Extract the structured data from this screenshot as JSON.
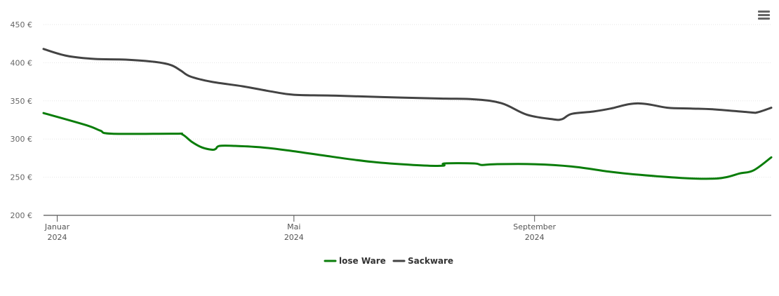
{
  "menu": {
    "icon": "hamburger-menu-icon"
  },
  "chart_data": {
    "type": "line",
    "title": "",
    "xlabel": "",
    "ylabel": "",
    "x_range": [
      "2023-12-25",
      "2024-12-31"
    ],
    "ylim": [
      200,
      450
    ],
    "y_ticks": [
      200,
      250,
      300,
      350,
      400,
      450
    ],
    "y_tick_suffix": " €",
    "grid": true,
    "legend_position": "bottom-center",
    "x_ticks": [
      {
        "date": "2024-01-01",
        "label": "Januar",
        "year": "2024"
      },
      {
        "date": "2024-05-01",
        "label": "Mai",
        "year": "2024"
      },
      {
        "date": "2024-09-01",
        "label": "September",
        "year": "2024"
      }
    ],
    "series": [
      {
        "name": "lose Ware",
        "color": "#0a7d0a",
        "points": [
          [
            "2023-12-25",
            334
          ],
          [
            "2024-01-16",
            318
          ],
          [
            "2024-01-23",
            311
          ],
          [
            "2024-01-29",
            307
          ],
          [
            "2024-03-01",
            307
          ],
          [
            "2024-03-05",
            306
          ],
          [
            "2024-03-10",
            296
          ],
          [
            "2024-03-15",
            289
          ],
          [
            "2024-03-20",
            286
          ],
          [
            "2024-03-22",
            287
          ],
          [
            "2024-03-24",
            291
          ],
          [
            "2024-04-01",
            291
          ],
          [
            "2024-04-15",
            289
          ],
          [
            "2024-05-01",
            284
          ],
          [
            "2024-05-20",
            277
          ],
          [
            "2024-06-10",
            270
          ],
          [
            "2024-07-01",
            266
          ],
          [
            "2024-07-16",
            265
          ],
          [
            "2024-07-17",
            268
          ],
          [
            "2024-08-01",
            268
          ],
          [
            "2024-08-05",
            266
          ],
          [
            "2024-08-12",
            267
          ],
          [
            "2024-09-01",
            267
          ],
          [
            "2024-09-20",
            264
          ],
          [
            "2024-10-10",
            257
          ],
          [
            "2024-10-25",
            253
          ],
          [
            "2024-11-15",
            249
          ],
          [
            "2024-11-30",
            248
          ],
          [
            "2024-12-08",
            250
          ],
          [
            "2024-12-15",
            255
          ],
          [
            "2024-12-22",
            259
          ],
          [
            "2024-12-31",
            276
          ]
        ]
      },
      {
        "name": "Sackware",
        "color": "#434343",
        "points": [
          [
            "2023-12-25",
            418
          ],
          [
            "2024-01-06",
            409
          ],
          [
            "2024-01-20",
            405
          ],
          [
            "2024-02-05",
            404
          ],
          [
            "2024-02-20",
            401
          ],
          [
            "2024-02-28",
            397
          ],
          [
            "2024-03-04",
            390
          ],
          [
            "2024-03-09",
            382
          ],
          [
            "2024-03-20",
            375
          ],
          [
            "2024-04-05",
            369
          ],
          [
            "2024-04-20",
            362
          ],
          [
            "2024-05-01",
            358
          ],
          [
            "2024-05-20",
            357
          ],
          [
            "2024-06-15",
            355
          ],
          [
            "2024-07-15",
            353
          ],
          [
            "2024-08-01",
            352
          ],
          [
            "2024-08-15",
            347
          ],
          [
            "2024-08-28",
            332
          ],
          [
            "2024-09-10",
            326
          ],
          [
            "2024-09-15",
            326
          ],
          [
            "2024-09-20",
            333
          ],
          [
            "2024-10-01",
            336
          ],
          [
            "2024-10-10",
            340
          ],
          [
            "2024-10-20",
            346
          ],
          [
            "2024-10-28",
            346
          ],
          [
            "2024-11-08",
            341
          ],
          [
            "2024-11-20",
            340
          ],
          [
            "2024-12-01",
            339
          ],
          [
            "2024-12-20",
            335
          ],
          [
            "2024-12-24",
            335
          ],
          [
            "2024-12-31",
            341
          ]
        ]
      }
    ]
  }
}
